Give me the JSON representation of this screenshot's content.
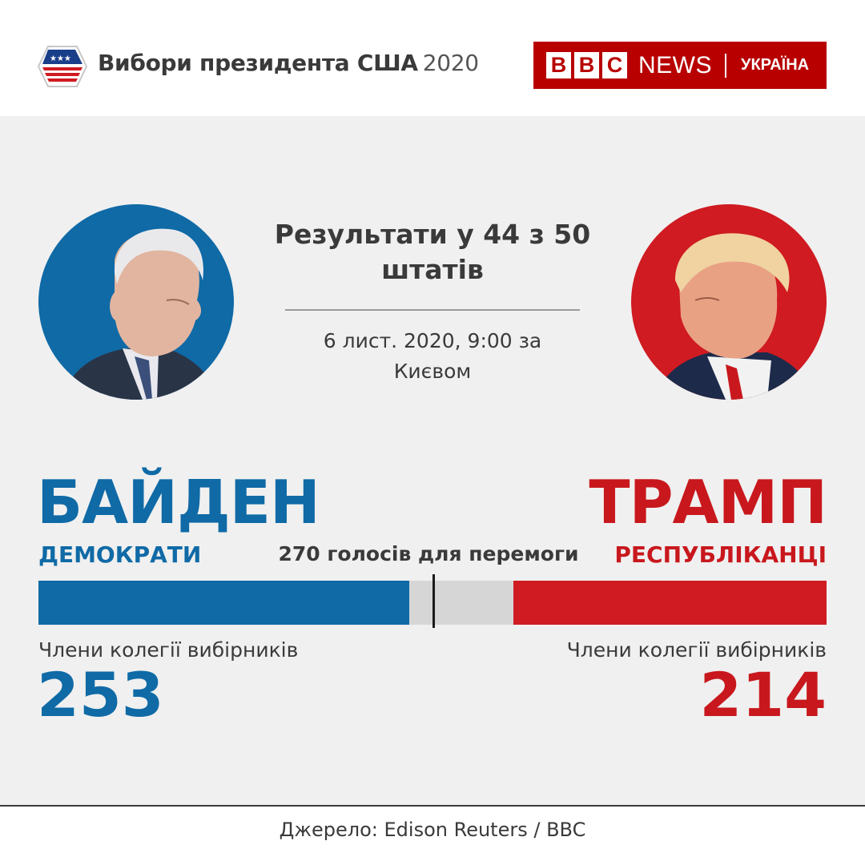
{
  "header": {
    "title": "Вибори президента США",
    "year": "2020",
    "logo": {
      "letters": [
        "B",
        "B",
        "C"
      ],
      "news": "NEWS",
      "region": "УКРАЇНА"
    }
  },
  "status": {
    "headline": "Результати у 44 з 50 штатів",
    "date": "6 лист. 2020, 9:00 за Києвом"
  },
  "colors": {
    "democrat": "#0f6aa6",
    "republican": "#cf1b21",
    "bbc": "#b80000",
    "neutral": "#d6d6d6"
  },
  "chart_data": {
    "type": "bar",
    "orientation": "horizontal-stacked",
    "threshold_label": "270 голосів для перемоги",
    "threshold": 270,
    "total": 538,
    "series": [
      {
        "name": "БАЙДЕН",
        "party": "ДЕМОКРАТИ",
        "caption": "Члени колегії вибірників",
        "value": 253
      },
      {
        "name": "ТРАМП",
        "party": "РЕСПУБЛІКАНЦІ",
        "caption": "Члени колегії вибірників",
        "value": 214
      }
    ]
  },
  "footer": {
    "source": "Джерело: Edison Reuters / BBC"
  }
}
